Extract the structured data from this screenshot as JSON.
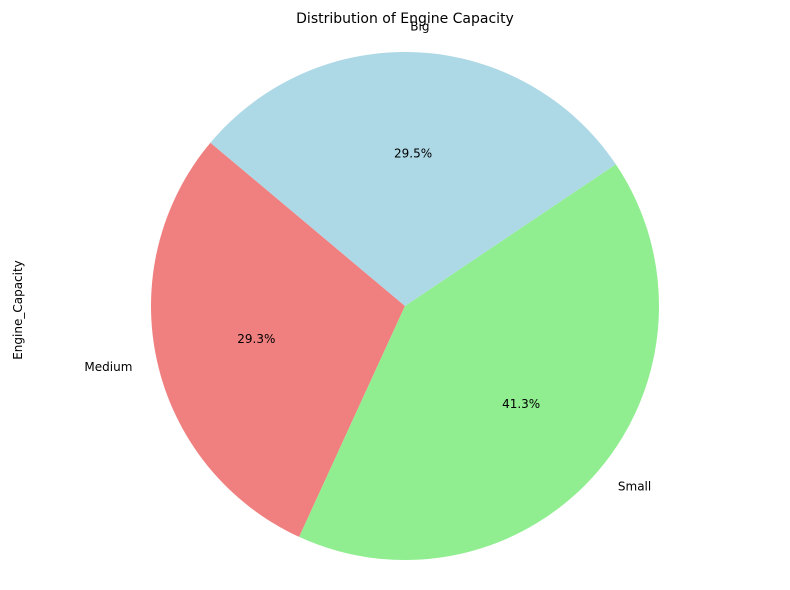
{
  "chart_data": {
    "type": "pie",
    "title": "Distribution of Engine Capacity",
    "ylabel": "Engine_Capacity",
    "start_angle_deg": 140,
    "direction": "counterclockwise",
    "slices": [
      {
        "label": "Medium",
        "value": 29.3,
        "pct_label": "29.3%",
        "color": "#f08080"
      },
      {
        "label": "Small",
        "value": 41.3,
        "pct_label": "41.3%",
        "color": "#90ee90"
      },
      {
        "label": "Big",
        "value": 29.5,
        "pct_label": "29.5%",
        "color": "#add8e6"
      }
    ]
  }
}
